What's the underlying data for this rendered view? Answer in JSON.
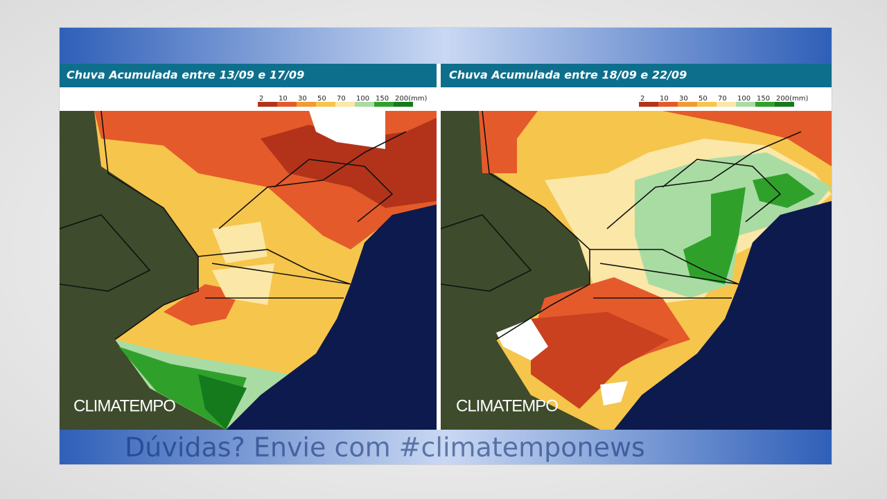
{
  "slide": {
    "panels": [
      {
        "title": "Chuva Acumulada entre 13/09 e 17/09",
        "legend": [
          "2",
          "10",
          "30",
          "50",
          "70",
          "100",
          "150",
          "200(mm)"
        ],
        "logo": "CLIMATEMPO"
      },
      {
        "title": "Chuva Acumulada entre 18/09 e 22/09",
        "legend": [
          "2",
          "10",
          "30",
          "50",
          "70",
          "100",
          "150",
          "200(mm)"
        ],
        "logo": "CLIMATEMPO"
      }
    ],
    "footer": "Dúvidas? Envie com #climatemponews"
  }
}
